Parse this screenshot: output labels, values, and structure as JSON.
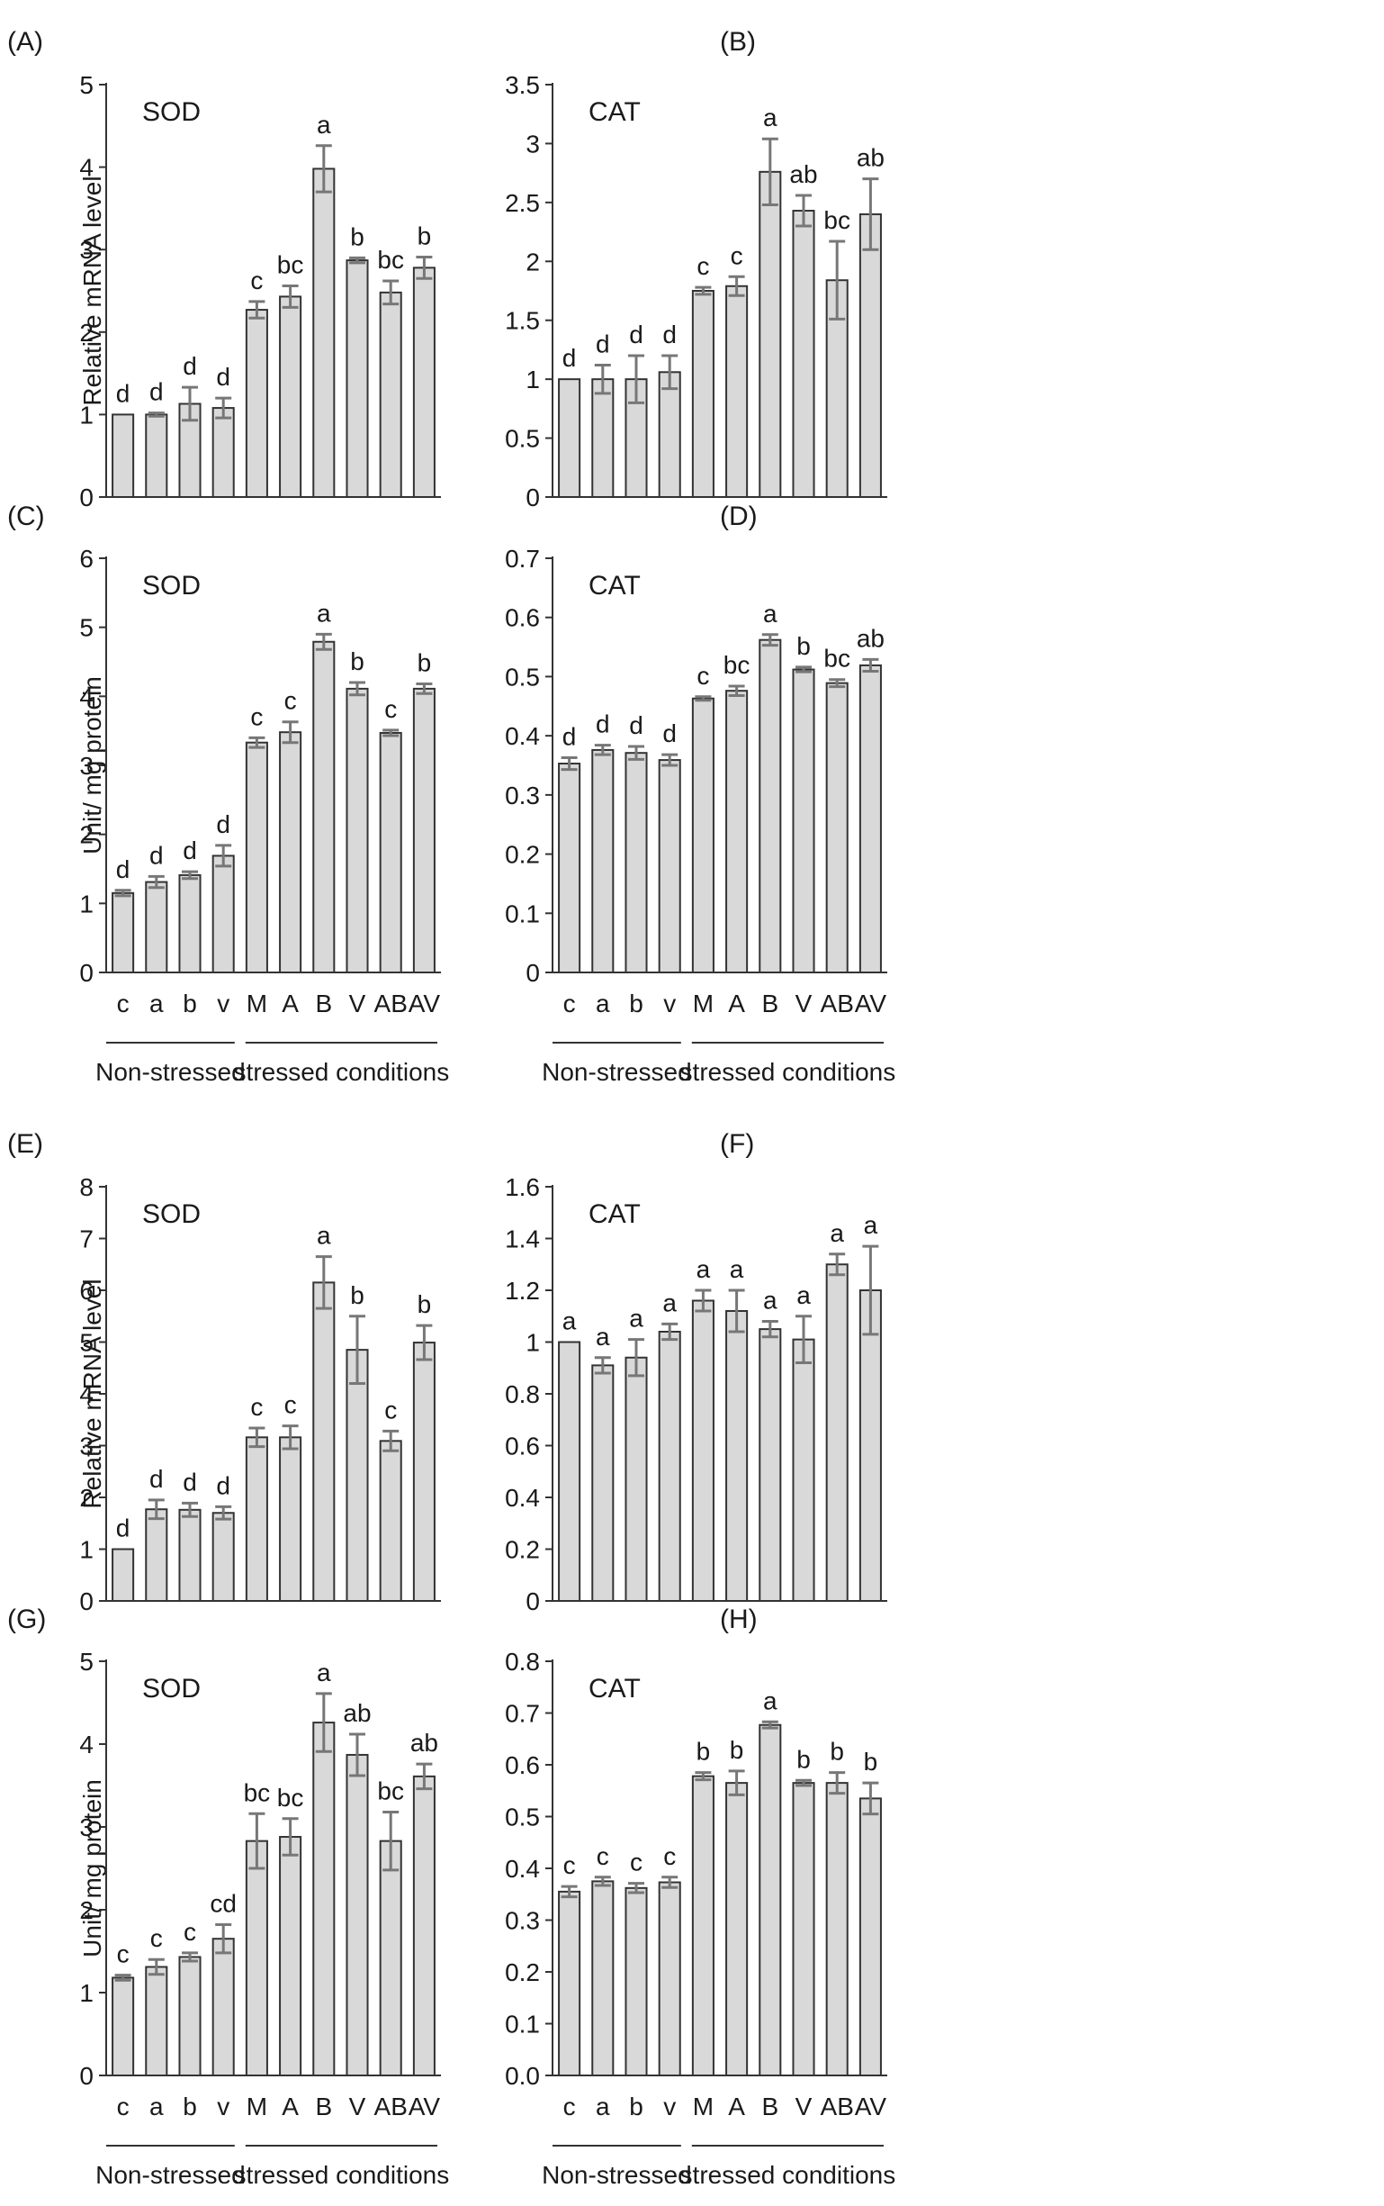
{
  "figure": {
    "categories": [
      "c",
      "a",
      "b",
      "v",
      "M",
      "A",
      "B",
      "V",
      "AB",
      "AV"
    ],
    "group_labels": [
      "Non-stressed",
      "stressed conditions"
    ],
    "bar_color": "#d9d9d9",
    "bar_stroke": "#333333",
    "error_color": "#777777"
  },
  "chart_data": [
    {
      "panel": "(A)",
      "type": "bar",
      "title": "SOD",
      "ylabel": "Relative mRNA level",
      "ylim": [
        0,
        5
      ],
      "yticks": [
        "0",
        "1",
        "2",
        "3",
        "4",
        "5"
      ],
      "categories": [
        "c",
        "a",
        "b",
        "v",
        "M",
        "A",
        "B",
        "V",
        "AB",
        "AV"
      ],
      "values": [
        1.0,
        1.0,
        1.13,
        1.08,
        2.27,
        2.43,
        3.98,
        2.87,
        2.48,
        2.78
      ],
      "errors": [
        0.0,
        0.02,
        0.2,
        0.12,
        0.1,
        0.13,
        0.28,
        0.03,
        0.14,
        0.13
      ],
      "labels": [
        "d",
        "d",
        "d",
        "d",
        "c",
        "bc",
        "a",
        "b",
        "bc",
        "b"
      ],
      "show_categories": false
    },
    {
      "panel": "(B)",
      "type": "bar",
      "title": "CAT",
      "ylabel": "",
      "ylim": [
        0,
        3.5
      ],
      "yticks": [
        "0",
        "0.5",
        "1",
        "1.5",
        "2",
        "2.5",
        "3",
        "3.5"
      ],
      "categories": [
        "c",
        "a",
        "b",
        "v",
        "M",
        "A",
        "B",
        "V",
        "AB",
        "AV"
      ],
      "values": [
        1.0,
        1.0,
        1.0,
        1.06,
        1.75,
        1.79,
        2.76,
        2.43,
        1.84,
        2.4
      ],
      "errors": [
        0.0,
        0.12,
        0.2,
        0.14,
        0.03,
        0.08,
        0.28,
        0.13,
        0.33,
        0.3
      ],
      "labels": [
        "d",
        "d",
        "d",
        "d",
        "c",
        "c",
        "a",
        "ab",
        "bc",
        "ab"
      ],
      "show_categories": false
    },
    {
      "panel": "(C)",
      "type": "bar",
      "title": "SOD",
      "ylabel": "Unit/ mg protein",
      "ylim": [
        0,
        6
      ],
      "yticks": [
        "0",
        "1",
        "2",
        "3",
        "4",
        "5",
        "6"
      ],
      "categories": [
        "c",
        "a",
        "b",
        "v",
        "M",
        "A",
        "B",
        "V",
        "AB",
        "AV"
      ],
      "values": [
        1.15,
        1.31,
        1.41,
        1.69,
        3.33,
        3.48,
        4.79,
        4.11,
        3.47,
        4.11
      ],
      "errors": [
        0.04,
        0.08,
        0.05,
        0.15,
        0.07,
        0.15,
        0.11,
        0.09,
        0.04,
        0.07
      ],
      "labels": [
        "d",
        "d",
        "d",
        "d",
        "c",
        "c",
        "a",
        "b",
        "c",
        "b"
      ],
      "show_categories": true
    },
    {
      "panel": "(D)",
      "type": "bar",
      "title": "CAT",
      "ylabel": "",
      "ylim": [
        0,
        0.7
      ],
      "yticks": [
        "0",
        "0.1",
        "0.2",
        "0.3",
        "0.4",
        "0.5",
        "0.6",
        "0.7"
      ],
      "categories": [
        "c",
        "a",
        "b",
        "v",
        "M",
        "A",
        "B",
        "V",
        "AB",
        "AV"
      ],
      "values": [
        0.353,
        0.376,
        0.371,
        0.359,
        0.463,
        0.476,
        0.562,
        0.512,
        0.489,
        0.519
      ],
      "errors": [
        0.01,
        0.008,
        0.011,
        0.009,
        0.003,
        0.008,
        0.009,
        0.004,
        0.006,
        0.01
      ],
      "labels": [
        "d",
        "d",
        "d",
        "d",
        "c",
        "bc",
        "a",
        "b",
        "bc",
        "ab"
      ],
      "show_categories": true
    },
    {
      "panel": "(E)",
      "type": "bar",
      "title": "SOD",
      "ylabel": "Relative mRNA level",
      "ylim": [
        0,
        8
      ],
      "yticks": [
        "0",
        "1",
        "2",
        "3",
        "4",
        "5",
        "6",
        "7",
        "8"
      ],
      "categories": [
        "c",
        "a",
        "b",
        "v",
        "M",
        "A",
        "B",
        "V",
        "AB",
        "AV"
      ],
      "values": [
        1.0,
        1.77,
        1.76,
        1.7,
        3.16,
        3.16,
        6.15,
        4.85,
        3.09,
        4.99
      ],
      "errors": [
        0.0,
        0.18,
        0.13,
        0.12,
        0.18,
        0.22,
        0.5,
        0.65,
        0.19,
        0.33
      ],
      "labels": [
        "d",
        "d",
        "d",
        "d",
        "c",
        "c",
        "a",
        "b",
        "c",
        "b"
      ],
      "show_categories": false
    },
    {
      "panel": "(F)",
      "type": "bar",
      "title": "CAT",
      "ylabel": "",
      "ylim": [
        0,
        1.6
      ],
      "yticks": [
        "0",
        "0.2",
        "0.4",
        "0.6",
        "0.8",
        "1",
        "1.2",
        "1.4",
        "1.6"
      ],
      "categories": [
        "c",
        "a",
        "b",
        "v",
        "M",
        "A",
        "B",
        "V",
        "AB",
        "AV"
      ],
      "values": [
        1.0,
        0.91,
        0.94,
        1.04,
        1.16,
        1.12,
        1.05,
        1.01,
        1.3,
        1.2
      ],
      "errors": [
        0.0,
        0.03,
        0.07,
        0.03,
        0.04,
        0.08,
        0.03,
        0.09,
        0.04,
        0.17
      ],
      "labels": [
        "a",
        "a",
        "a",
        "a",
        "a",
        "a",
        "a",
        "a",
        "a",
        "a"
      ],
      "show_categories": false
    },
    {
      "panel": "(G)",
      "type": "bar",
      "title": "SOD",
      "ylabel": "Unit/ mg protein",
      "ylim": [
        0,
        5
      ],
      "yticks": [
        "0",
        "1",
        "2",
        "3",
        "4",
        "5"
      ],
      "categories": [
        "c",
        "a",
        "b",
        "v",
        "M",
        "A",
        "B",
        "V",
        "AB",
        "AV"
      ],
      "values": [
        1.18,
        1.31,
        1.43,
        1.65,
        2.83,
        2.88,
        4.26,
        3.87,
        2.83,
        3.61
      ],
      "errors": [
        0.03,
        0.09,
        0.05,
        0.17,
        0.33,
        0.22,
        0.35,
        0.25,
        0.35,
        0.15
      ],
      "labels": [
        "c",
        "c",
        "c",
        "cd",
        "bc",
        "bc",
        "a",
        "ab",
        "bc",
        "ab"
      ],
      "show_categories": true
    },
    {
      "panel": "(H)",
      "type": "bar",
      "title": "CAT",
      "ylabel": "",
      "ylim": [
        0,
        0.8
      ],
      "yticks": [
        "0.0",
        "0.1",
        "0.2",
        "0.3",
        "0.4",
        "0.5",
        "0.6",
        "0.7",
        "0.8"
      ],
      "categories": [
        "c",
        "a",
        "b",
        "v",
        "M",
        "A",
        "B",
        "V",
        "AB",
        "AV"
      ],
      "values": [
        0.355,
        0.375,
        0.362,
        0.373,
        0.578,
        0.565,
        0.677,
        0.565,
        0.565,
        0.535
      ],
      "errors": [
        0.01,
        0.008,
        0.009,
        0.01,
        0.007,
        0.023,
        0.006,
        0.005,
        0.02,
        0.03
      ],
      "labels": [
        "c",
        "c",
        "c",
        "c",
        "b",
        "b",
        "a",
        "b",
        "b",
        "b"
      ],
      "show_categories": true
    }
  ]
}
